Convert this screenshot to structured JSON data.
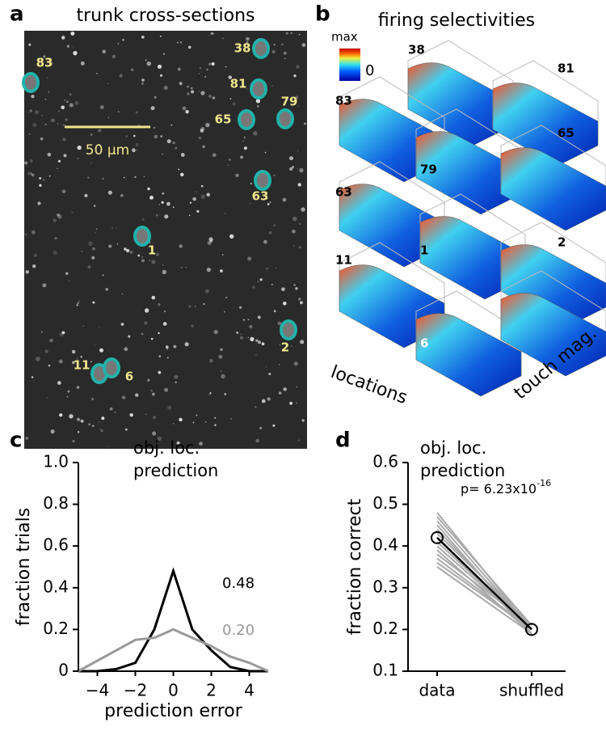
{
  "panels": {
    "a": {
      "letter": "a",
      "title": "trunk cross-sections",
      "scale_bar": "50 μm",
      "cells": [
        "83",
        "38",
        "81",
        "65",
        "79",
        "63",
        "1",
        "2",
        "11",
        "6"
      ]
    },
    "b": {
      "letter": "b",
      "title": "firing selectivities",
      "colorbar": [
        "max",
        "0"
      ],
      "cells": [
        "38",
        "81",
        "83",
        "79",
        "65",
        "63",
        "1",
        "2",
        "11",
        "6"
      ],
      "axis_labels": [
        "locations",
        "touch mag."
      ]
    },
    "c": {
      "letter": "c"
    },
    "d": {
      "letter": "d"
    }
  },
  "chart_data": [
    {
      "type": "line",
      "title": [
        "obj. loc.",
        "prediction"
      ],
      "xlabel": "prediction error",
      "ylabel": "fraction trials",
      "x": [
        -5,
        -4,
        -3,
        -2,
        -1,
        0,
        1,
        2,
        3,
        4,
        5
      ],
      "series": [
        {
          "color": "#000000",
          "values": [
            0,
            0,
            0.01,
            0.04,
            0.2,
            0.48,
            0.2,
            0.1,
            0.02,
            0,
            0
          ]
        },
        {
          "color": "#999999",
          "values": [
            0,
            0.05,
            0.1,
            0.15,
            0.16,
            0.2,
            0.16,
            0.12,
            0.07,
            0.04,
            0
          ]
        }
      ],
      "annotations": [
        {
          "text": "0.48",
          "color": "#000000"
        },
        {
          "text": "0.20",
          "color": "#999999"
        }
      ],
      "xlim": [
        -5,
        5
      ],
      "xticks": [
        {
          "value": -4,
          "label": "−4"
        },
        {
          "value": -2,
          "label": "−2"
        },
        0,
        2,
        4
      ],
      "ylim": [
        0,
        1
      ],
      "yticks": [
        0,
        0.2,
        0.4,
        0.6,
        0.8,
        {
          "value": 1,
          "label": "1.0"
        }
      ]
    },
    {
      "type": "paired",
      "title": [
        "obj. loc.",
        "prediction"
      ],
      "ylabel": "fraction correct",
      "categories": [
        "data",
        "shuffled"
      ],
      "series": [
        {
          "color": "#aaaaaa",
          "values": [
            0.48,
            0.2
          ]
        },
        {
          "color": "#aaaaaa",
          "values": [
            0.47,
            0.21
          ]
        },
        {
          "color": "#aaaaaa",
          "values": [
            0.46,
            0.2
          ]
        },
        {
          "color": "#aaaaaa",
          "values": [
            0.45,
            0.19
          ]
        },
        {
          "color": "#aaaaaa",
          "values": [
            0.44,
            0.2
          ]
        },
        {
          "color": "#aaaaaa",
          "values": [
            0.43,
            0.21
          ]
        },
        {
          "color": "#aaaaaa",
          "values": [
            0.42,
            0.19
          ]
        },
        {
          "color": "#aaaaaa",
          "values": [
            0.41,
            0.2
          ]
        },
        {
          "color": "#aaaaaa",
          "values": [
            0.4,
            0.2
          ]
        },
        {
          "color": "#aaaaaa",
          "values": [
            0.39,
            0.19
          ]
        },
        {
          "color": "#aaaaaa",
          "values": [
            0.38,
            0.21
          ]
        },
        {
          "color": "#aaaaaa",
          "values": [
            0.37,
            0.2
          ]
        },
        {
          "color": "#aaaaaa",
          "values": [
            0.36,
            0.2
          ]
        },
        {
          "color": "#aaaaaa",
          "values": [
            0.35,
            0.19
          ]
        },
        {
          "color": "#000000",
          "values": [
            0.42,
            0.2
          ],
          "markers": true
        }
      ],
      "annotation": {
        "text": "p= 6.23x10",
        "exponent": "-16"
      },
      "ylim": [
        0.1,
        0.6
      ],
      "yticks": [
        0.1,
        0.2,
        0.3,
        0.4,
        0.5,
        0.6
      ]
    }
  ]
}
